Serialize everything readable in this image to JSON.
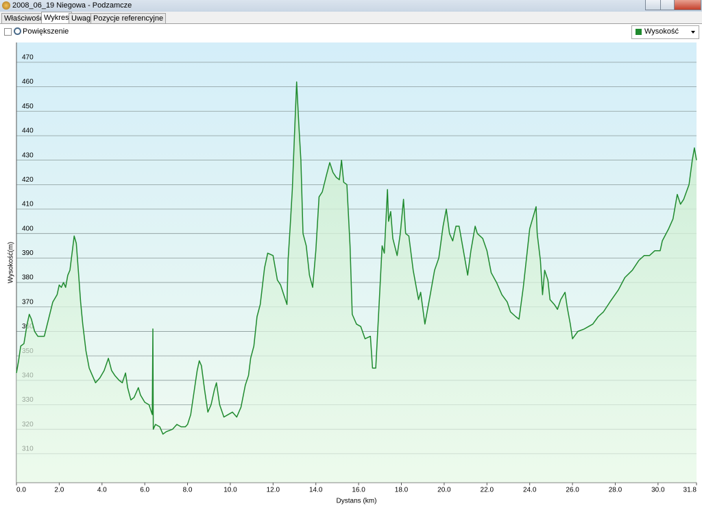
{
  "window": {
    "title": "2008_06_19 Niegowa - Podzamcze"
  },
  "tabs": [
    "Właściwości",
    "Wykres",
    "Uwagi",
    "Pozycje referencyjne"
  ],
  "toolbar": {
    "zoom_label": "Powiększenie"
  },
  "chart_data": {
    "type": "area",
    "x_label": "Dystans  (km)",
    "y_label": "Wysokość(m)",
    "x": [
      0.0,
      0.1,
      0.2,
      0.35,
      0.5,
      0.6,
      0.7,
      0.85,
      1.0,
      1.3,
      1.5,
      1.7,
      1.9,
      2.0,
      2.1,
      2.2,
      2.3,
      2.4,
      2.5,
      2.6,
      2.7,
      2.8,
      2.9,
      3.0,
      3.1,
      3.25,
      3.4,
      3.55,
      3.7,
      3.9,
      4.1,
      4.3,
      4.45,
      4.6,
      4.8,
      4.95,
      5.1,
      5.2,
      5.35,
      5.5,
      5.7,
      5.8,
      6.0,
      6.2,
      6.35,
      6.38,
      6.4,
      6.5,
      6.7,
      6.85,
      7.0,
      7.3,
      7.5,
      7.7,
      7.9,
      8.0,
      8.15,
      8.3,
      8.45,
      8.55,
      8.65,
      8.8,
      8.95,
      9.1,
      9.25,
      9.35,
      9.5,
      9.7,
      9.9,
      10.1,
      10.3,
      10.5,
      10.7,
      10.85,
      10.95,
      11.1,
      11.25,
      11.4,
      11.6,
      11.75,
      12.0,
      12.2,
      12.35,
      12.5,
      12.65,
      12.7,
      12.8,
      12.9,
      13.0,
      13.1,
      13.2,
      13.3,
      13.4,
      13.55,
      13.7,
      13.85,
      14.0,
      14.15,
      14.3,
      14.5,
      14.65,
      14.8,
      14.95,
      15.1,
      15.2,
      15.3,
      15.45,
      15.6,
      15.7,
      15.9,
      16.1,
      16.3,
      16.55,
      16.65,
      16.8,
      16.95,
      17.1,
      17.2,
      17.35,
      17.4,
      17.5,
      17.6,
      17.8,
      17.95,
      18.1,
      18.2,
      18.35,
      18.55,
      18.8,
      18.9,
      19.1,
      19.35,
      19.55,
      19.75,
      19.95,
      20.1,
      20.25,
      20.4,
      20.55,
      20.7,
      20.9,
      21.1,
      21.25,
      21.45,
      21.55,
      21.8,
      22.0,
      22.2,
      22.45,
      22.7,
      22.95,
      23.1,
      23.35,
      23.5,
      23.7,
      23.85,
      24.0,
      24.3,
      24.35,
      24.5,
      24.6,
      24.7,
      24.85,
      24.95,
      25.15,
      25.3,
      25.45,
      25.65,
      25.75,
      25.9,
      26.0,
      26.25,
      26.55,
      26.75,
      26.95,
      27.2,
      27.45,
      27.75,
      28.15,
      28.45,
      28.8,
      29.1,
      29.35,
      29.6,
      29.85,
      30.1,
      30.2,
      30.5,
      30.7,
      30.9,
      31.05,
      31.2,
      31.45,
      31.6,
      31.7,
      31.8
    ],
    "series": [
      {
        "name": "Wysokość",
        "color": "#1f8a2e",
        "values": [
          343,
          348,
          354,
          355,
          363,
          367,
          365,
          360,
          358,
          358,
          365,
          372,
          375,
          379,
          378,
          380,
          378,
          383,
          385,
          392,
          399,
          396,
          384,
          372,
          363,
          352,
          345,
          342,
          339,
          341,
          344,
          349,
          344,
          342,
          340,
          339,
          343,
          337,
          332,
          333,
          337,
          334,
          331,
          330,
          326,
          361,
          320,
          322,
          321,
          318,
          319,
          320,
          322,
          321,
          321,
          322,
          326,
          335,
          344,
          348,
          346,
          336,
          327,
          330,
          336,
          339,
          330,
          325,
          326,
          327,
          325,
          329,
          338,
          342,
          349,
          354,
          366,
          371,
          386,
          392,
          391,
          381,
          379,
          375,
          371,
          389,
          403,
          418,
          440,
          462,
          445,
          430,
          400,
          395,
          383,
          378,
          393,
          415,
          417,
          424,
          429,
          425,
          423,
          422,
          430,
          421,
          420,
          395,
          367,
          363,
          362,
          357,
          358,
          345,
          345,
          370,
          395,
          392,
          418,
          405,
          409,
          398,
          391,
          400,
          414,
          400,
          399,
          385,
          373,
          376,
          363,
          375,
          385,
          390,
          403,
          410,
          400,
          397,
          403,
          403,
          393,
          383,
          393,
          403,
          400,
          398,
          393,
          384,
          380,
          375,
          372,
          368,
          366,
          365,
          378,
          390,
          402,
          411,
          400,
          389,
          375,
          385,
          381,
          373,
          371,
          369,
          373,
          376,
          370,
          363,
          357,
          360,
          361,
          362,
          363,
          366,
          368,
          372,
          377,
          382,
          385,
          389,
          391,
          391,
          393,
          393,
          397,
          402,
          406,
          416,
          412,
          414,
          420,
          430,
          435,
          430
        ]
      }
    ],
    "xlim": [
      0,
      31.8
    ],
    "ylim": [
      298.2,
      478.1
    ],
    "xticks": [
      {
        "value": 0,
        "label": "0.0"
      },
      {
        "value": 2,
        "label": "2.0"
      },
      {
        "value": 4,
        "label": "4.0"
      },
      {
        "value": 6,
        "label": "6.0"
      },
      {
        "value": 8,
        "label": "8.0"
      },
      {
        "value": 10,
        "label": "10.0"
      },
      {
        "value": 12,
        "label": "12.0"
      },
      {
        "value": 14,
        "label": "14.0"
      },
      {
        "value": 16,
        "label": "16.0"
      },
      {
        "value": 18,
        "label": "18.0"
      },
      {
        "value": 20,
        "label": "20.0"
      },
      {
        "value": 22,
        "label": "22.0"
      },
      {
        "value": 24,
        "label": "24.0"
      },
      {
        "value": 26,
        "label": "26.0"
      },
      {
        "value": 28,
        "label": "28.0"
      },
      {
        "value": 30,
        "label": "30.0"
      },
      31.8
    ],
    "yticks": [
      310,
      320,
      330,
      340,
      350,
      360,
      370,
      380,
      390,
      400,
      410,
      420,
      430,
      440,
      450,
      460,
      470
    ],
    "grid": true
  }
}
